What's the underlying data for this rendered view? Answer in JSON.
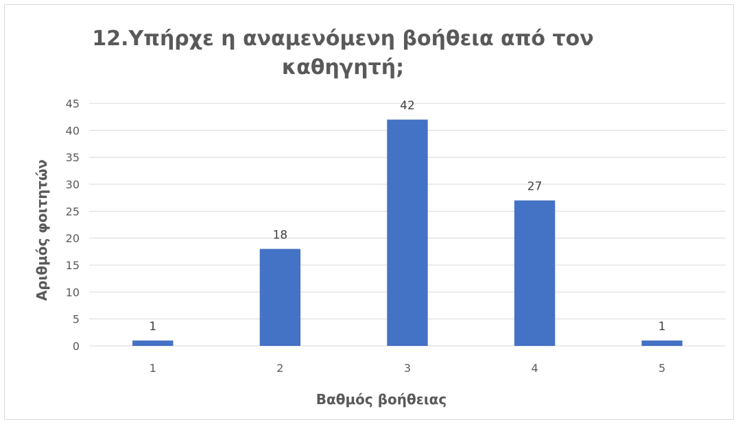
{
  "chart_data": {
    "type": "bar",
    "title_lines": [
      "12.Υπήρχε η αναμενόμενη βοήθεια από τον",
      "καθηγητή;"
    ],
    "xlabel": "Βαθμός βοήθειας",
    "ylabel": "Αριθμός φοιτητών",
    "categories": [
      "1",
      "2",
      "3",
      "4",
      "5"
    ],
    "values": [
      1,
      18,
      42,
      27,
      1
    ],
    "ylim": [
      0,
      45
    ],
    "yticks": [
      "0",
      "5",
      "10",
      "15",
      "20",
      "25",
      "30",
      "35",
      "40",
      "45"
    ],
    "data_labels": [
      "1",
      "18",
      "42",
      "27",
      "1"
    ],
    "grid": true,
    "legend": "none",
    "bar_color": "#4472c4",
    "grid_color": "#d9d9d9"
  }
}
